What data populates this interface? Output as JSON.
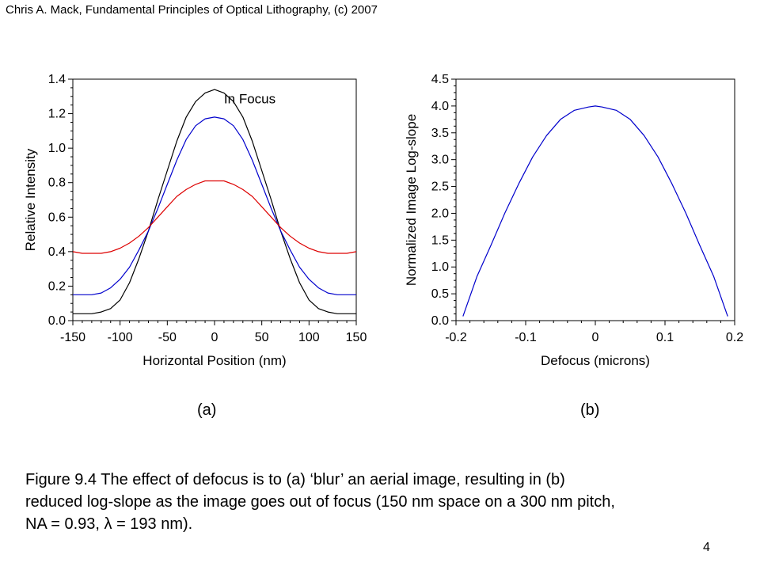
{
  "header": {
    "text": "Chris A. Mack, Fundamental Principles of Optical Lithography, (c) 2007"
  },
  "subfigures": {
    "a": "(a)",
    "b": "(b)"
  },
  "caption": {
    "line1": "Figure 9.4  The effect of defocus is to (a) ‘blur’ an aerial image, resulting in (b)",
    "line2": "reduced log-slope as the image goes out of focus (150 nm space on a 300 nm pitch,",
    "line3": "NA = 0.93, λ = 193 nm)."
  },
  "page_number": "4",
  "chart_data": [
    {
      "type": "line",
      "xlabel": "Horizontal Position (nm)",
      "ylabel": "Relative Intensity",
      "xlim": [
        -150,
        150
      ],
      "ylim": [
        0,
        1.4
      ],
      "xticks": [
        "-150",
        "-100",
        "-50",
        "0",
        "50",
        "100",
        "150"
      ],
      "xtick_values": [
        -150,
        -100,
        -50,
        0,
        50,
        100,
        150
      ],
      "yticks": [
        "0.0",
        "0.2",
        "0.4",
        "0.6",
        "0.8",
        "1.0",
        "1.2",
        "1.4"
      ],
      "ytick_values": [
        0,
        0.2,
        0.4,
        0.6,
        0.8,
        1.0,
        1.2,
        1.4
      ],
      "annotation": "In Focus",
      "x": [
        -150,
        -140,
        -130,
        -120,
        -110,
        -100,
        -90,
        -80,
        -70,
        -60,
        -50,
        -40,
        -30,
        -20,
        -10,
        0,
        10,
        20,
        30,
        40,
        50,
        60,
        70,
        80,
        90,
        100,
        110,
        120,
        130,
        140,
        150
      ],
      "series": [
        {
          "color": "#000000",
          "values": [
            0.04,
            0.04,
            0.04,
            0.05,
            0.07,
            0.12,
            0.22,
            0.36,
            0.52,
            0.7,
            0.87,
            1.04,
            1.18,
            1.27,
            1.32,
            1.34,
            1.32,
            1.27,
            1.18,
            1.04,
            0.87,
            0.7,
            0.52,
            0.36,
            0.22,
            0.12,
            0.07,
            0.05,
            0.04,
            0.04,
            0.04
          ]
        },
        {
          "color": "#0000cc",
          "values": [
            0.15,
            0.15,
            0.15,
            0.16,
            0.19,
            0.24,
            0.31,
            0.41,
            0.52,
            0.65,
            0.79,
            0.93,
            1.05,
            1.13,
            1.17,
            1.18,
            1.17,
            1.13,
            1.05,
            0.93,
            0.79,
            0.65,
            0.52,
            0.41,
            0.31,
            0.24,
            0.19,
            0.16,
            0.15,
            0.15,
            0.15
          ]
        },
        {
          "color": "#dd0000",
          "values": [
            0.4,
            0.39,
            0.39,
            0.39,
            0.4,
            0.42,
            0.45,
            0.49,
            0.54,
            0.6,
            0.66,
            0.72,
            0.76,
            0.79,
            0.81,
            0.81,
            0.81,
            0.79,
            0.76,
            0.72,
            0.66,
            0.6,
            0.54,
            0.49,
            0.45,
            0.42,
            0.4,
            0.39,
            0.39,
            0.39,
            0.4
          ]
        }
      ]
    },
    {
      "type": "line",
      "xlabel": "Defocus (microns)",
      "ylabel": "Normalized Image Log-slope",
      "xlim": [
        -0.2,
        0.2
      ],
      "ylim": [
        0,
        4.5
      ],
      "xticks": [
        "-0.2",
        "-0.1",
        "0",
        "0.1",
        "0.2"
      ],
      "xtick_values": [
        -0.2,
        -0.1,
        0,
        0.1,
        0.2
      ],
      "yticks": [
        "0.0",
        "0.5",
        "1.0",
        "1.5",
        "2.0",
        "2.5",
        "3.0",
        "3.5",
        "4.0",
        "4.5"
      ],
      "ytick_values": [
        0,
        0.5,
        1.0,
        1.5,
        2.0,
        2.5,
        3.0,
        3.5,
        4.0,
        4.5
      ],
      "x": [
        -0.19,
        -0.17,
        -0.15,
        -0.13,
        -0.11,
        -0.09,
        -0.07,
        -0.05,
        -0.03,
        -0.01,
        0,
        0.01,
        0.03,
        0.05,
        0.07,
        0.09,
        0.11,
        0.13,
        0.15,
        0.17,
        0.19
      ],
      "series": [
        {
          "color": "#0000cc",
          "values": [
            0.08,
            0.82,
            1.4,
            2.0,
            2.55,
            3.05,
            3.45,
            3.75,
            3.92,
            3.98,
            4.0,
            3.98,
            3.92,
            3.75,
            3.45,
            3.05,
            2.55,
            2.0,
            1.4,
            0.82,
            0.08
          ]
        }
      ]
    }
  ]
}
